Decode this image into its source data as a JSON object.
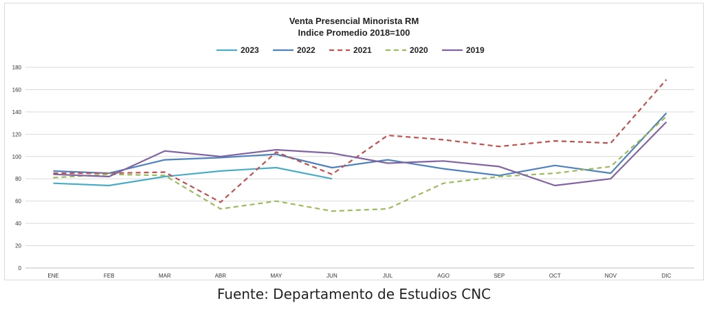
{
  "chart_data": {
    "type": "line",
    "title": "Venta Presencial Minorista RM",
    "subtitle": "Indice Promedio 2018=100",
    "categories": [
      "ENE",
      "FEB",
      "MAR",
      "ABR",
      "MAY",
      "JUN",
      "JUL",
      "AGO",
      "SEP",
      "OCT",
      "NOV",
      "DIC"
    ],
    "ylim": [
      0,
      180
    ],
    "yticks": [
      0,
      20,
      40,
      60,
      80,
      100,
      120,
      140,
      160,
      180
    ],
    "grid": true,
    "legend_position": "top",
    "series": [
      {
        "name": "2023",
        "color": "#4bacc6",
        "dash": "solid",
        "values": [
          76,
          74,
          82,
          87,
          90,
          80,
          null,
          null,
          null,
          null,
          null,
          null
        ]
      },
      {
        "name": "2022",
        "color": "#4f81bd",
        "dash": "solid",
        "values": [
          87,
          85,
          97,
          99,
          102,
          90,
          97,
          89,
          83,
          92,
          85,
          139
        ]
      },
      {
        "name": "2021",
        "color": "#c0504d",
        "dash": "dashed",
        "values": [
          85,
          85,
          86,
          59,
          104,
          84,
          119,
          115,
          109,
          114,
          112,
          169
        ]
      },
      {
        "name": "2020",
        "color": "#9bbb59",
        "dash": "dashed",
        "values": [
          81,
          84,
          83,
          53,
          60,
          51,
          53,
          76,
          82,
          85,
          91,
          136
        ]
      },
      {
        "name": "2019",
        "color": "#8064a2",
        "dash": "solid",
        "values": [
          84,
          82,
          105,
          100,
          106,
          103,
          94,
          96,
          91,
          74,
          80,
          131
        ]
      }
    ]
  },
  "source_text": "Fuente: Departamento de Estudios CNC"
}
